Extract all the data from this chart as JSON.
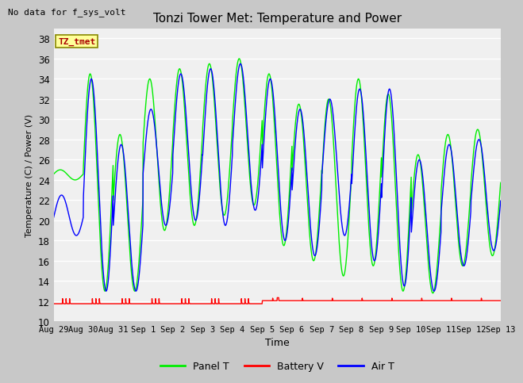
{
  "title": "Tonzi Tower Met: Temperature and Power",
  "xlabel": "Time",
  "ylabel": "Temperature (C) / Power (V)",
  "note": "No data for f_sys_volt",
  "legend_label": "TZ_tmet",
  "ylim": [
    10,
    39
  ],
  "yticks": [
    10,
    12,
    14,
    16,
    18,
    20,
    22,
    24,
    26,
    28,
    30,
    32,
    34,
    36,
    38
  ],
  "xtick_labels": [
    "Aug 29",
    "Aug 30",
    "Aug 31",
    "Sep 1",
    "Sep 2",
    "Sep 3",
    "Sep 4",
    "Sep 5",
    "Sep 6",
    "Sep 7",
    "Sep 8",
    "Sep 9",
    "Sep 10",
    "Sep 11",
    "Sep 12",
    "Sep 13"
  ],
  "panel_color": "#00ee00",
  "battery_color": "#ff0000",
  "air_color": "#0000ff",
  "fig_bg_color": "#c8c8c8",
  "plot_bg_color": "#f0f0f0",
  "grid_color": "#ffffff",
  "legend_entries": [
    "Panel T",
    "Battery V",
    "Air T"
  ],
  "n_days": 15,
  "day_peaks_panel": [
    25.0,
    34.5,
    28.5,
    34.0,
    35.0,
    35.5,
    36.0,
    34.5,
    31.5,
    32.0,
    34.0,
    32.5,
    26.5,
    28.5,
    29.0
  ],
  "day_troughs_panel": [
    24.0,
    13.0,
    13.0,
    19.0,
    19.5,
    20.5,
    21.5,
    17.5,
    16.0,
    14.5,
    15.5,
    13.0,
    12.8,
    15.5,
    16.5
  ],
  "day_peaks_air": [
    22.5,
    34.0,
    27.5,
    31.0,
    34.5,
    35.0,
    35.5,
    34.0,
    31.0,
    32.0,
    33.0,
    33.0,
    26.0,
    27.5,
    28.0
  ],
  "day_troughs_air": [
    18.5,
    13.0,
    13.0,
    19.5,
    20.0,
    19.5,
    21.0,
    18.0,
    16.5,
    18.5,
    16.0,
    13.5,
    13.0,
    15.5,
    17.0
  ],
  "batt_base_early": 11.75,
  "batt_base_late": 12.05,
  "batt_switch_day": 7
}
